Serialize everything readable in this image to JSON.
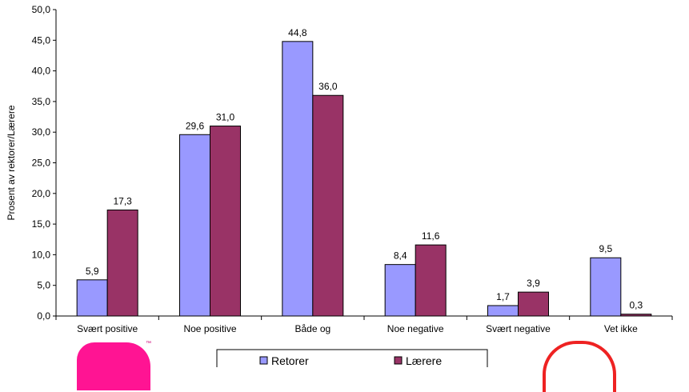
{
  "chart_data": {
    "type": "bar",
    "categories": [
      "Svært positive",
      "Noe positive",
      "Både og",
      "Noe negative",
      "Svært negative",
      "Vet ikke"
    ],
    "series": [
      {
        "name": "Retorer",
        "values": [
          5.9,
          29.6,
          44.8,
          8.4,
          1.7,
          9.5
        ],
        "labels": [
          "5,9",
          "29,6",
          "44,8",
          "8,4",
          "1,7",
          "9,5"
        ],
        "color": "#9999ff"
      },
      {
        "name": "Lærere",
        "values": [
          17.3,
          31.0,
          36.0,
          11.6,
          3.9,
          0.3
        ],
        "labels": [
          "17,3",
          "31,0",
          "36,0",
          "11,6",
          "3,9",
          "0,3"
        ],
        "color": "#993366"
      }
    ],
    "ylabel": "Prosent av rektorer/Lærere",
    "ylim": [
      0,
      50
    ],
    "yticks": [
      "0,0",
      "5,0",
      "10,0",
      "15,0",
      "20,0",
      "25,0",
      "30,0",
      "35,0",
      "40,0",
      "45,0",
      "50,0"
    ],
    "grid": false,
    "legend_position": "bottom"
  }
}
